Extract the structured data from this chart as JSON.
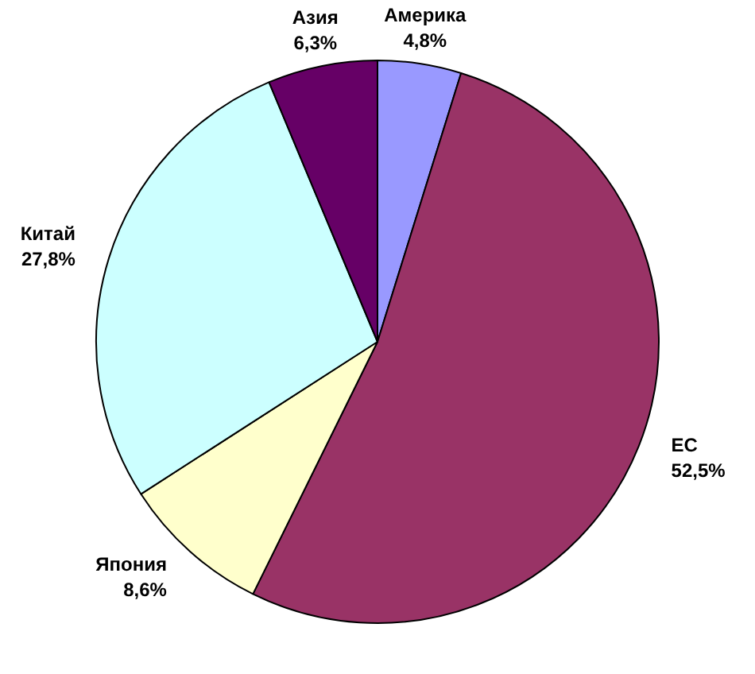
{
  "chart_data": {
    "type": "pie",
    "categories": [
      "Америка",
      "ЕС",
      "Япония",
      "Китай",
      "Азия"
    ],
    "values": [
      4.8,
      52.5,
      8.6,
      27.8,
      6.3
    ],
    "value_labels": [
      "4,8%",
      "52,5%",
      "8,6%",
      "27,8%",
      "6,3%"
    ],
    "colors": [
      "#9999ff",
      "#993366",
      "#ffffcc",
      "#ccffff",
      "#660066"
    ],
    "legend": false
  }
}
